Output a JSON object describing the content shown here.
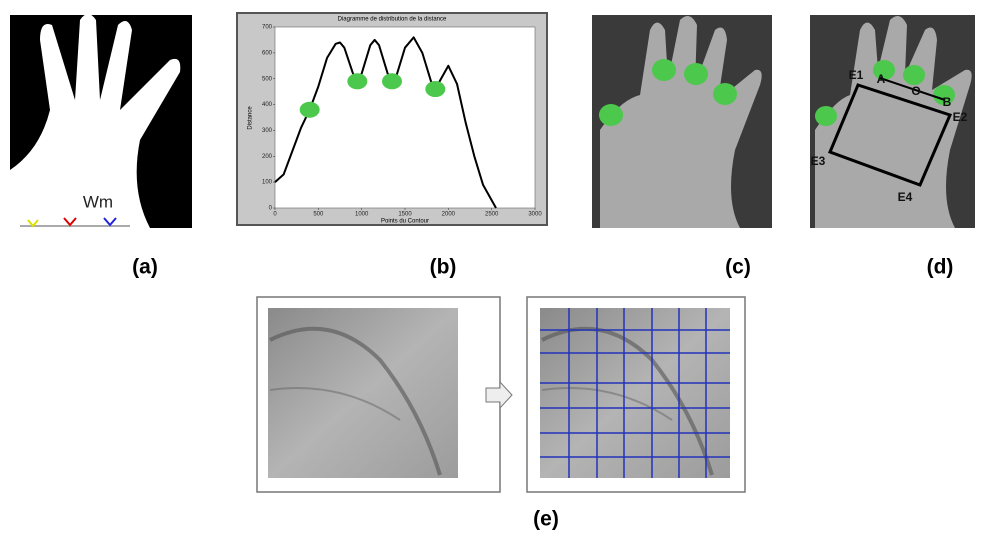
{
  "panels": [
    {
      "label": "(a)",
      "annotation": "Wm"
    },
    {
      "label": "(b)"
    },
    {
      "label": "(c)"
    },
    {
      "label": "(d)",
      "points": [
        "E1",
        "A",
        "O",
        "B",
        "E2",
        "E3",
        "E4"
      ]
    },
    {
      "label": "(e)"
    }
  ],
  "chart_data": {
    "type": "line",
    "title": "Diagramme de distribution de la distance",
    "xlabel": "Points du Contour",
    "ylabel": "Distance",
    "x": [
      0,
      100,
      200,
      300,
      400,
      500,
      600,
      700,
      750,
      800,
      900,
      950,
      1000,
      1100,
      1150,
      1200,
      1300,
      1350,
      1400,
      1500,
      1600,
      1700,
      1800,
      1850,
      1900,
      2000,
      2100,
      2200,
      2300,
      2400,
      2550
    ],
    "values": [
      100,
      130,
      220,
      310,
      380,
      470,
      580,
      635,
      640,
      620,
      520,
      490,
      520,
      630,
      650,
      630,
      520,
      490,
      510,
      620,
      660,
      600,
      490,
      460,
      490,
      550,
      480,
      330,
      200,
      90,
      0
    ],
    "color": "#000000",
    "markers": {
      "x": [
        400,
        950,
        1350,
        1850
      ],
      "values": [
        380,
        490,
        490,
        460
      ],
      "color": "#4cc84c"
    },
    "xlim": [
      0,
      3000
    ],
    "ylim": [
      0,
      700
    ],
    "xticks": [
      0,
      500,
      1000,
      1500,
      2000,
      2500,
      3000
    ],
    "yticks": [
      0,
      100,
      200,
      300,
      400,
      500,
      600,
      700
    ]
  }
}
